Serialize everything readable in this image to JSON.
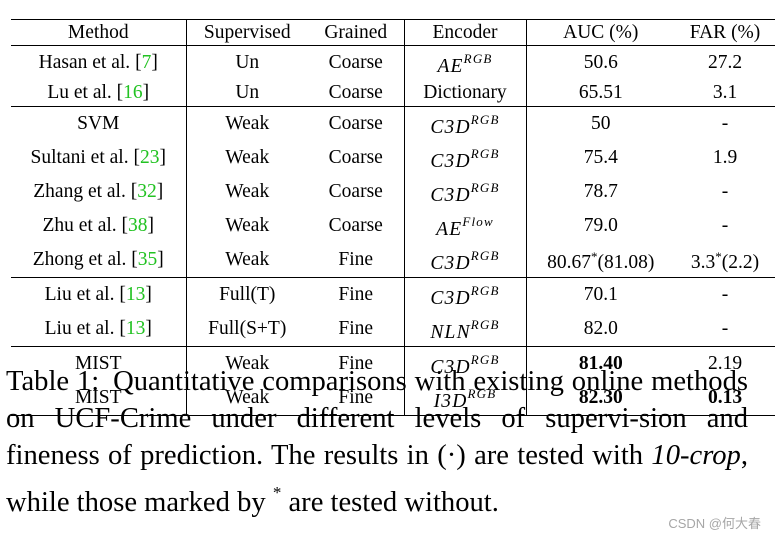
{
  "table": {
    "headers": [
      "Method",
      "Supervised",
      "Grained",
      "Encoder",
      "AUC (%)",
      "FAR (%)"
    ],
    "rows": [
      {
        "group_start": false,
        "name": "Hasan et al.",
        "ref": "7",
        "supervised": "Un",
        "grained": "Coarse",
        "enc": "AE",
        "enc_sup": "RGB",
        "auc": "50.6",
        "far": "27.2"
      },
      {
        "group_start": false,
        "name": "Lu et al.",
        "ref": "16",
        "supervised": "Un",
        "grained": "Coarse",
        "enc_text": "Dictionary",
        "auc": "65.51",
        "far": "3.1"
      },
      {
        "group_start": true,
        "name": "SVM",
        "supervised": "Weak",
        "grained": "Coarse",
        "enc": "C3D",
        "enc_sup": "RGB",
        "auc": "50",
        "far": "-"
      },
      {
        "group_start": false,
        "name": "Sultani et al.",
        "ref": "23",
        "supervised": "Weak",
        "grained": "Coarse",
        "enc": "C3D",
        "enc_sup": "RGB",
        "auc": "75.4",
        "far": "1.9"
      },
      {
        "group_start": false,
        "name": "Zhang et al.",
        "ref": "32",
        "supervised": "Weak",
        "grained": "Coarse",
        "enc": "C3D",
        "enc_sup": "RGB",
        "auc": "78.7",
        "far": "-"
      },
      {
        "group_start": false,
        "name": "Zhu et al.",
        "ref": "38",
        "supervised": "Weak",
        "grained": "Coarse",
        "enc": "AE",
        "enc_sup": "Flow",
        "auc": "79.0",
        "far": "-"
      },
      {
        "group_start": false,
        "name": "Zhong et al.",
        "ref": "35",
        "supervised": "Weak",
        "grained": "Fine",
        "enc": "C3D",
        "enc_sup": "RGB",
        "auc": "80.67",
        "auc_star": true,
        "auc_extra": "(81.08)",
        "far": "3.3",
        "far_star": true,
        "far_extra": "(2.2)"
      },
      {
        "group_start": true,
        "name": "Liu et al.",
        "ref": "13",
        "supervised": "Full(T)",
        "grained": "Fine",
        "enc": "C3D",
        "enc_sup": "RGB",
        "auc": "70.1",
        "far": "-"
      },
      {
        "group_start": false,
        "name": "Liu et al.",
        "ref": "13",
        "supervised": "Full(S+T)",
        "grained": "Fine",
        "enc": "NLN",
        "enc_sup": "RGB",
        "auc": "82.0",
        "far": "-"
      },
      {
        "group_start": true,
        "name": "MIST",
        "supervised": "Weak",
        "grained": "Fine",
        "enc": "C3D",
        "enc_sup": "RGB",
        "auc": "81.40",
        "auc_bold": true,
        "far": "2.19"
      },
      {
        "group_start": false,
        "name": "MIST",
        "supervised": "Weak",
        "grained": "Fine",
        "enc": "I3D",
        "enc_sup": "RGB",
        "auc": "82.30",
        "auc_bold": true,
        "far": "0.13",
        "far_bold": true
      }
    ]
  },
  "caption": {
    "label": "Table 1:",
    "text1": "Quantitative comparisons with existing online methods on UCF-Crime under different levels of supervi-sion and fineness of prediction. The results in",
    "paren_dot": "(·)",
    "text2": "are tested with",
    "emph": "10-crop",
    "text3": ", while those marked by",
    "star": "*",
    "text4": "are tested without."
  },
  "watermark": "CSDN @何大春",
  "colors": {
    "reference_link": "#22c222",
    "watermark": "#a6a6a6"
  }
}
